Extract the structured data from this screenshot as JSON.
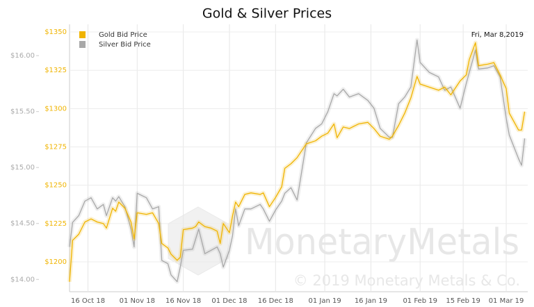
{
  "chart_data": {
    "type": "line",
    "title": "Gold & Silver Prices",
    "annotation": "Fri, Mar 8,2019",
    "watermark": "MonetaryMetals",
    "copyright": "© 2019 Monetary Metals & Co.",
    "legend": "top-left",
    "grid": true,
    "x": [
      "2018-10-10",
      "2018-10-11",
      "2018-10-13",
      "2018-10-15",
      "2018-10-17",
      "2018-10-19",
      "2018-10-21",
      "2018-10-22",
      "2018-10-24",
      "2018-10-25",
      "2018-10-26",
      "2018-10-28",
      "2018-10-30",
      "2018-10-31",
      "2018-11-01",
      "2018-11-04",
      "2018-11-06",
      "2018-11-08",
      "2018-11-09",
      "2018-11-11",
      "2018-11-12",
      "2018-11-14",
      "2018-11-15",
      "2018-11-16",
      "2018-11-19",
      "2018-11-20",
      "2018-11-21",
      "2018-11-23",
      "2018-11-25",
      "2018-11-27",
      "2018-11-28",
      "2018-11-29",
      "2018-12-01",
      "2018-12-02",
      "2018-12-03",
      "2018-12-04",
      "2018-12-06",
      "2018-12-08",
      "2018-12-11",
      "2018-12-12",
      "2018-12-14",
      "2018-12-16",
      "2018-12-18",
      "2018-12-19",
      "2018-12-21",
      "2018-12-23",
      "2018-12-26",
      "2018-12-29",
      "2018-12-31",
      "2019-01-02",
      "2019-01-04",
      "2019-01-05",
      "2019-01-07",
      "2019-01-09",
      "2019-01-12",
      "2019-01-15",
      "2019-01-17",
      "2019-01-19",
      "2019-01-22",
      "2019-01-23",
      "2019-01-25",
      "2019-01-27",
      "2019-01-29",
      "2019-01-31",
      "2019-02-01",
      "2019-02-04",
      "2019-02-07",
      "2019-02-09",
      "2019-02-11",
      "2019-02-14",
      "2019-02-16",
      "2019-02-17",
      "2019-02-19",
      "2019-02-20",
      "2019-02-23",
      "2019-02-25",
      "2019-02-27",
      "2019-03-01",
      "2019-03-02",
      "2019-03-05",
      "2019-03-06",
      "2019-03-07"
    ],
    "xlim": [
      "2018-10-10",
      "2019-03-08"
    ],
    "xticks": [
      {
        "value": "2018-10-16",
        "label": "16 Oct 18"
      },
      {
        "value": "2018-11-01",
        "label": "01 Nov 18"
      },
      {
        "value": "2018-11-16",
        "label": "16 Nov 18"
      },
      {
        "value": "2018-12-01",
        "label": "01 Dec 18"
      },
      {
        "value": "2018-12-16",
        "label": "16 Dec 18"
      },
      {
        "value": "2019-01-01",
        "label": "01 Jan 19"
      },
      {
        "value": "2019-01-16",
        "label": "16 Jan 19"
      },
      {
        "value": "2019-02-01",
        "label": "01 Feb 19"
      },
      {
        "value": "2019-02-15",
        "label": "15 Feb 19"
      },
      {
        "value": "2019-03-01",
        "label": "01 Mar 19"
      }
    ],
    "ylim": [
      1180.5,
      1355
    ],
    "yticks": [
      {
        "value": 1200,
        "label": "$1200"
      },
      {
        "value": 1225,
        "label": "$1225"
      },
      {
        "value": 1250,
        "label": "$1250"
      },
      {
        "value": 1275,
        "label": "$1275"
      },
      {
        "value": 1300,
        "label": "$1300"
      },
      {
        "value": 1325,
        "label": "$1325"
      },
      {
        "value": 1350,
        "label": "$1350"
      }
    ],
    "y2lim": [
      13.89,
      16.28
    ],
    "y2ticks": [
      {
        "value": 14,
        "label": "$14.00"
      },
      {
        "value": 14.5,
        "label": "$14.50"
      },
      {
        "value": 15,
        "label": "$15.00"
      },
      {
        "value": 15.5,
        "label": "$15.50"
      },
      {
        "value": 16,
        "label": "$16.00"
      }
    ],
    "series": [
      {
        "name": "Gold Bid Price",
        "color": "#f0b400",
        "axis": "y",
        "values": [
          1187,
          1214,
          1218,
          1226,
          1228,
          1226,
          1225,
          1222,
          1235,
          1233,
          1239,
          1235,
          1226,
          1215,
          1232,
          1231,
          1232,
          1225,
          1212,
          1209,
          1205,
          1201,
          1203,
          1221,
          1222,
          1223,
          1226,
          1223,
          1222,
          1220,
          1212,
          1225,
          1219,
          1230,
          1239,
          1236,
          1244,
          1245,
          1244,
          1245,
          1236,
          1242,
          1249,
          1261,
          1264,
          1268,
          1277,
          1279,
          1282,
          1284,
          1290,
          1281,
          1288,
          1287,
          1290,
          1291,
          1287,
          1282,
          1280,
          1282,
          1289,
          1297,
          1307,
          1321,
          1316,
          1314,
          1312,
          1314,
          1309,
          1318,
          1322,
          1332,
          1343,
          1328,
          1329,
          1330,
          1322,
          1313,
          1297,
          1286,
          1286,
          1298
        ]
      },
      {
        "name": "Silver Bid Price",
        "color": "#a8a8a8",
        "axis": "y2",
        "values": [
          14.29,
          14.51,
          14.57,
          14.7,
          14.73,
          14.63,
          14.67,
          14.57,
          14.73,
          14.7,
          14.74,
          14.65,
          14.45,
          14.29,
          14.77,
          14.73,
          14.63,
          14.65,
          14.17,
          14.14,
          14.04,
          13.98,
          14.11,
          14.26,
          14.27,
          14.36,
          14.45,
          14.23,
          14.26,
          14.29,
          14.23,
          14.11,
          14.26,
          14.39,
          14.63,
          14.48,
          14.63,
          14.63,
          14.67,
          14.63,
          14.52,
          14.62,
          14.7,
          14.77,
          14.82,
          14.71,
          15.22,
          15.35,
          15.39,
          15.5,
          15.66,
          15.64,
          15.7,
          15.63,
          15.66,
          15.6,
          15.53,
          15.35,
          15.27,
          15.27,
          15.57,
          15.63,
          15.72,
          16.14,
          15.94,
          15.85,
          15.81,
          15.69,
          15.72,
          15.53,
          15.75,
          15.85,
          16.05,
          15.88,
          15.89,
          15.91,
          15.81,
          15.44,
          15.29,
          15.08,
          15.02,
          15.26
        ]
      }
    ]
  }
}
